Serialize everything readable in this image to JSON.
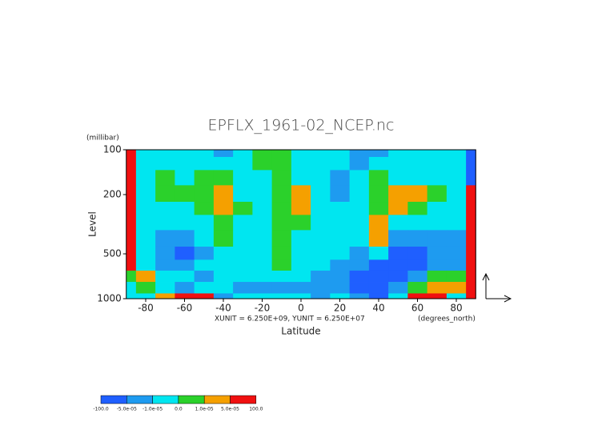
{
  "chart_data": {
    "type": "contour",
    "title": "EPFLX_1961-02_NCEP.nc",
    "xlabel": "Latitude",
    "ylabel": "Level",
    "xunit": "(degrees_north)",
    "yunit": "(millibar)",
    "annotation": "XUNIT = 6.250E+09, YUNIT = 6.250E+07",
    "xlim": [
      -90,
      90
    ],
    "ylim": [
      1000,
      100
    ],
    "ylog": true,
    "xticks": [
      -80,
      -60,
      -40,
      -20,
      0,
      20,
      40,
      60,
      80
    ],
    "yticks": [
      100,
      200,
      500,
      1000
    ],
    "x": [
      -90,
      -80,
      -70,
      -60,
      -50,
      -40,
      -30,
      -20,
      -10,
      0,
      10,
      20,
      30,
      40,
      50,
      60,
      70,
      80,
      90
    ],
    "y": [
      100,
      125,
      150,
      200,
      250,
      300,
      400,
      500,
      600,
      700,
      850,
      1000
    ],
    "levels": [
      {
        "value": -100,
        "label": "-100.0"
      },
      {
        "value": -5e-05,
        "label": "-5.0e-05"
      },
      {
        "value": -1e-05,
        "label": "-1.0e-05"
      },
      {
        "value": 0,
        "label": "0.0"
      },
      {
        "value": 1e-05,
        "label": "1.0e-05"
      },
      {
        "value": 5e-05,
        "label": "5.0e-05"
      },
      {
        "value": 100,
        "label": "100.0"
      }
    ],
    "colors": [
      "#1f5fff",
      "#1e9bf0",
      "#00e6f0",
      "#2bd12b",
      "#f5a000",
      "#f01010"
    ],
    "z": [
      [
        7e-05,
        -5e-06,
        -5e-06,
        -5e-06,
        -5e-06,
        -3e-05,
        -5e-06,
        5e-06,
        5e-06,
        -5e-06,
        -5e-06,
        -5e-06,
        -3e-05,
        -3e-05,
        -5e-06,
        -5e-06,
        -5e-06,
        -5e-06,
        -7e-05
      ],
      [
        7e-05,
        -5e-06,
        -5e-06,
        -5e-06,
        -5e-06,
        -5e-06,
        -5e-06,
        5e-06,
        5e-06,
        -5e-06,
        -5e-06,
        -5e-06,
        -3e-05,
        -5e-06,
        -5e-06,
        -5e-06,
        -5e-06,
        -5e-06,
        -7e-05
      ],
      [
        7e-05,
        -5e-06,
        5e-06,
        -5e-06,
        5e-06,
        5e-06,
        -5e-06,
        -5e-06,
        5e-06,
        -5e-06,
        -5e-06,
        -3e-05,
        -5e-06,
        5e-06,
        -5e-06,
        -5e-06,
        -5e-06,
        -5e-06,
        -7e-05
      ],
      [
        7e-05,
        -5e-06,
        5e-06,
        5e-06,
        5e-06,
        3e-05,
        -5e-06,
        -5e-06,
        5e-06,
        3e-05,
        -5e-06,
        -3e-05,
        -5e-06,
        5e-06,
        3e-05,
        3e-05,
        5e-06,
        -5e-06,
        7e-05
      ],
      [
        7e-05,
        -5e-06,
        -5e-06,
        -5e-06,
        5e-06,
        3e-05,
        5e-06,
        -5e-06,
        5e-06,
        3e-05,
        -5e-06,
        -5e-06,
        -5e-06,
        5e-06,
        3e-05,
        5e-06,
        -5e-06,
        -5e-06,
        7e-05
      ],
      [
        7e-05,
        -5e-06,
        -5e-06,
        -5e-06,
        -5e-06,
        5e-06,
        -5e-06,
        -5e-06,
        5e-06,
        5e-06,
        -5e-06,
        -5e-06,
        -5e-06,
        3e-05,
        -5e-06,
        -5e-06,
        -5e-06,
        -5e-06,
        7e-05
      ],
      [
        7e-05,
        -5e-06,
        -3e-05,
        -3e-05,
        -5e-06,
        5e-06,
        -5e-06,
        -5e-06,
        5e-06,
        -5e-06,
        -5e-06,
        -5e-06,
        -5e-06,
        3e-05,
        -3e-05,
        -3e-05,
        -3e-05,
        -3e-05,
        7e-05
      ],
      [
        7e-05,
        -5e-06,
        -3e-05,
        -7e-05,
        -3e-05,
        -5e-06,
        -5e-06,
        -5e-06,
        5e-06,
        -5e-06,
        -5e-06,
        -5e-06,
        -3e-05,
        -5e-06,
        -7e-05,
        -7e-05,
        -3e-05,
        -3e-05,
        7e-05
      ],
      [
        7e-05,
        -5e-06,
        -3e-05,
        -3e-05,
        -5e-06,
        -5e-06,
        -5e-06,
        -5e-06,
        5e-06,
        -5e-06,
        -5e-06,
        -3e-05,
        -3e-05,
        -7e-05,
        -7e-05,
        -7e-05,
        -3e-05,
        -3e-05,
        7e-05
      ],
      [
        5e-06,
        3e-05,
        -5e-06,
        -5e-06,
        -3e-05,
        -5e-06,
        -5e-06,
        -5e-06,
        -5e-06,
        -5e-06,
        -3e-05,
        -3e-05,
        -7e-05,
        -7e-05,
        -7e-05,
        -3e-05,
        5e-06,
        5e-06,
        7e-05
      ],
      [
        -5e-06,
        5e-06,
        -5e-06,
        -3e-05,
        -5e-06,
        -5e-06,
        -3e-05,
        -3e-05,
        -3e-05,
        -3e-05,
        -3e-05,
        -3e-05,
        -7e-05,
        -7e-05,
        -3e-05,
        5e-06,
        3e-05,
        3e-05,
        7e-05
      ],
      [
        -5e-06,
        -5e-06,
        3e-05,
        7e-05,
        7e-05,
        -3e-05,
        -5e-06,
        -5e-06,
        -5e-06,
        -5e-06,
        -3e-05,
        -5e-06,
        -3e-05,
        -7e-05,
        -5e-06,
        7e-05,
        7e-05,
        -5e-06,
        7e-05
      ]
    ]
  }
}
